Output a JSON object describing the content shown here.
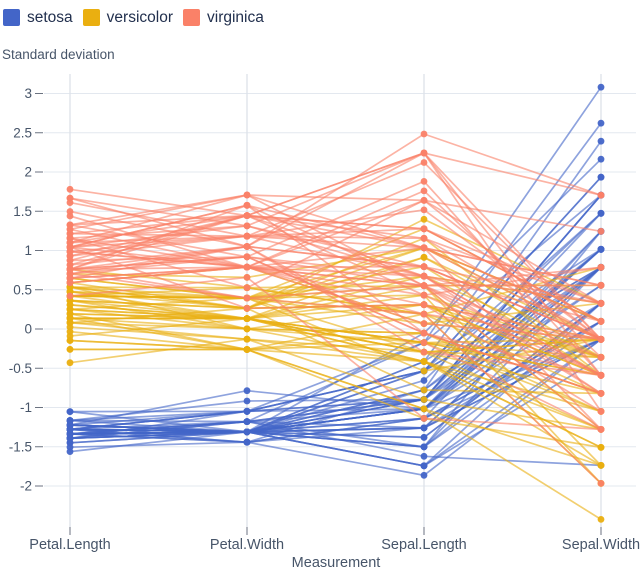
{
  "legend": {
    "items": [
      {
        "label": "setosa",
        "color": "#4365c8"
      },
      {
        "label": "versicolor",
        "color": "#eaaf10"
      },
      {
        "label": "virginica",
        "color": "#fa8168"
      }
    ]
  },
  "chart_data": {
    "type": "line",
    "subtype": "parallel-coordinates",
    "title": "",
    "xlabel": "Measurement",
    "ylabel": "Standard deviation",
    "legend_position": "top-left",
    "grid": true,
    "axes": [
      "Petal.Length",
      "Petal.Width",
      "Sepal.Length",
      "Sepal.Width"
    ],
    "columns": [
      "Sepal.Length",
      "Sepal.Width",
      "Petal.Length",
      "Petal.Width"
    ],
    "transform": "z-score per measurement over all observations",
    "y_ticks": [
      3,
      2.5,
      2,
      1.5,
      1,
      0.5,
      0,
      -0.5,
      -1,
      -1.5,
      -2
    ],
    "y_tick_labels": [
      "3",
      "2.5",
      "2",
      "1.5",
      "1",
      "0.5",
      "0",
      "-0.5",
      "-1",
      "-1.5",
      "-2"
    ],
    "ylim": [
      -2.55,
      3.28
    ],
    "style": {
      "grid_color": "#e3e8ef",
      "axis_line_color": "#dde2e9",
      "tick_color": "#6b7280",
      "tick_label_color": "#475569",
      "axis_label_color": "#475569",
      "line_width": 1.7,
      "line_opacity": 0.6,
      "point_radius": 3.4
    },
    "series": [
      {
        "name": "setosa",
        "color": "#4365c8",
        "rows": [
          [
            5.1,
            3.5,
            1.4,
            0.2
          ],
          [
            4.9,
            3.0,
            1.4,
            0.2
          ],
          [
            4.7,
            3.2,
            1.3,
            0.2
          ],
          [
            4.6,
            3.1,
            1.5,
            0.2
          ],
          [
            5.0,
            3.6,
            1.4,
            0.2
          ],
          [
            5.4,
            3.9,
            1.7,
            0.4
          ],
          [
            4.6,
            3.4,
            1.4,
            0.3
          ],
          [
            5.0,
            3.4,
            1.5,
            0.2
          ],
          [
            4.4,
            2.9,
            1.4,
            0.2
          ],
          [
            4.9,
            3.1,
            1.5,
            0.1
          ],
          [
            5.4,
            3.7,
            1.5,
            0.2
          ],
          [
            4.8,
            3.4,
            1.6,
            0.2
          ],
          [
            4.8,
            3.0,
            1.4,
            0.1
          ],
          [
            4.3,
            3.0,
            1.1,
            0.1
          ],
          [
            5.8,
            4.0,
            1.2,
            0.2
          ],
          [
            5.7,
            4.4,
            1.5,
            0.4
          ],
          [
            5.4,
            3.9,
            1.3,
            0.4
          ],
          [
            5.1,
            3.5,
            1.4,
            0.3
          ],
          [
            5.7,
            3.8,
            1.7,
            0.3
          ],
          [
            5.1,
            3.8,
            1.5,
            0.3
          ],
          [
            5.4,
            3.4,
            1.7,
            0.2
          ],
          [
            5.1,
            3.7,
            1.5,
            0.4
          ],
          [
            4.6,
            3.6,
            1.0,
            0.2
          ],
          [
            5.1,
            3.3,
            1.7,
            0.5
          ],
          [
            4.8,
            3.4,
            1.9,
            0.2
          ],
          [
            5.0,
            3.0,
            1.6,
            0.2
          ],
          [
            5.0,
            3.4,
            1.6,
            0.4
          ],
          [
            5.2,
            3.5,
            1.5,
            0.2
          ],
          [
            5.2,
            3.4,
            1.4,
            0.2
          ],
          [
            4.7,
            3.2,
            1.6,
            0.2
          ],
          [
            4.8,
            3.1,
            1.6,
            0.2
          ],
          [
            5.4,
            3.4,
            1.5,
            0.4
          ],
          [
            5.2,
            4.1,
            1.5,
            0.1
          ],
          [
            5.5,
            4.2,
            1.4,
            0.2
          ],
          [
            4.9,
            3.1,
            1.5,
            0.2
          ],
          [
            5.0,
            3.2,
            1.2,
            0.2
          ],
          [
            5.5,
            3.5,
            1.3,
            0.2
          ],
          [
            4.9,
            3.6,
            1.4,
            0.1
          ],
          [
            4.4,
            3.0,
            1.3,
            0.2
          ],
          [
            5.1,
            3.4,
            1.5,
            0.2
          ],
          [
            5.0,
            3.5,
            1.3,
            0.3
          ],
          [
            4.5,
            2.3,
            1.3,
            0.3
          ],
          [
            4.4,
            3.2,
            1.3,
            0.2
          ],
          [
            5.0,
            3.5,
            1.6,
            0.6
          ],
          [
            5.1,
            3.8,
            1.9,
            0.4
          ],
          [
            4.8,
            3.0,
            1.4,
            0.3
          ],
          [
            5.1,
            3.8,
            1.6,
            0.2
          ],
          [
            4.6,
            3.2,
            1.4,
            0.2
          ],
          [
            5.3,
            3.7,
            1.5,
            0.2
          ],
          [
            5.0,
            3.3,
            1.4,
            0.2
          ]
        ]
      },
      {
        "name": "versicolor",
        "color": "#eaaf10",
        "rows": [
          [
            7.0,
            3.2,
            4.7,
            1.4
          ],
          [
            6.4,
            3.2,
            4.5,
            1.5
          ],
          [
            6.9,
            3.1,
            4.9,
            1.5
          ],
          [
            5.5,
            2.3,
            4.0,
            1.3
          ],
          [
            6.5,
            2.8,
            4.6,
            1.5
          ],
          [
            5.7,
            2.8,
            4.5,
            1.3
          ],
          [
            6.3,
            3.3,
            4.7,
            1.6
          ],
          [
            4.9,
            2.4,
            3.3,
            1.0
          ],
          [
            6.6,
            2.9,
            4.6,
            1.3
          ],
          [
            5.2,
            2.7,
            3.9,
            1.4
          ],
          [
            5.0,
            2.0,
            3.5,
            1.0
          ],
          [
            5.9,
            3.0,
            4.2,
            1.5
          ],
          [
            6.0,
            2.2,
            4.0,
            1.0
          ],
          [
            6.1,
            2.9,
            4.7,
            1.4
          ],
          [
            5.6,
            2.9,
            3.6,
            1.3
          ],
          [
            6.7,
            3.1,
            4.4,
            1.4
          ],
          [
            5.6,
            3.0,
            4.5,
            1.5
          ],
          [
            5.8,
            2.7,
            4.1,
            1.0
          ],
          [
            6.2,
            2.2,
            4.5,
            1.5
          ],
          [
            5.6,
            2.5,
            3.9,
            1.1
          ],
          [
            5.9,
            3.2,
            4.8,
            1.8
          ],
          [
            6.1,
            2.8,
            4.0,
            1.3
          ],
          [
            6.3,
            2.5,
            4.9,
            1.5
          ],
          [
            6.1,
            2.8,
            4.7,
            1.2
          ],
          [
            6.4,
            2.9,
            4.3,
            1.3
          ],
          [
            6.6,
            3.0,
            4.4,
            1.4
          ],
          [
            6.8,
            2.8,
            4.8,
            1.4
          ],
          [
            6.7,
            3.0,
            5.0,
            1.7
          ],
          [
            6.0,
            2.9,
            4.5,
            1.5
          ],
          [
            5.7,
            2.6,
            3.5,
            1.0
          ],
          [
            5.5,
            2.4,
            3.8,
            1.1
          ],
          [
            5.5,
            2.4,
            3.7,
            1.0
          ],
          [
            5.8,
            2.7,
            3.9,
            1.2
          ],
          [
            6.0,
            2.7,
            5.1,
            1.6
          ],
          [
            5.4,
            3.0,
            4.5,
            1.5
          ],
          [
            6.0,
            3.4,
            4.5,
            1.6
          ],
          [
            6.7,
            3.1,
            4.7,
            1.5
          ],
          [
            6.3,
            2.3,
            4.4,
            1.3
          ],
          [
            5.6,
            3.0,
            4.1,
            1.3
          ],
          [
            5.5,
            2.5,
            4.0,
            1.3
          ],
          [
            5.5,
            2.6,
            4.4,
            1.2
          ],
          [
            6.1,
            3.0,
            4.6,
            1.4
          ],
          [
            5.8,
            2.6,
            4.0,
            1.2
          ],
          [
            5.0,
            2.3,
            3.3,
            1.0
          ],
          [
            5.6,
            2.7,
            4.2,
            1.3
          ],
          [
            5.7,
            3.0,
            4.2,
            1.2
          ],
          [
            5.7,
            2.9,
            4.2,
            1.3
          ],
          [
            6.2,
            2.9,
            4.3,
            1.3
          ],
          [
            5.1,
            2.5,
            3.0,
            1.1
          ],
          [
            5.7,
            2.8,
            4.1,
            1.3
          ]
        ]
      },
      {
        "name": "virginica",
        "color": "#fa8168",
        "rows": [
          [
            6.3,
            3.3,
            6.0,
            2.5
          ],
          [
            5.8,
            2.7,
            5.1,
            1.9
          ],
          [
            7.1,
            3.0,
            5.9,
            2.1
          ],
          [
            6.3,
            2.9,
            5.6,
            1.8
          ],
          [
            6.5,
            3.0,
            5.8,
            2.2
          ],
          [
            7.6,
            3.0,
            6.6,
            2.1
          ],
          [
            4.9,
            2.5,
            4.5,
            1.7
          ],
          [
            7.3,
            2.9,
            6.3,
            1.8
          ],
          [
            6.7,
            2.5,
            5.8,
            1.8
          ],
          [
            7.2,
            3.6,
            6.1,
            2.5
          ],
          [
            6.5,
            3.2,
            5.1,
            2.0
          ],
          [
            6.4,
            2.7,
            5.3,
            1.9
          ],
          [
            6.8,
            3.0,
            5.5,
            2.1
          ],
          [
            5.7,
            2.5,
            5.0,
            2.0
          ],
          [
            5.8,
            2.8,
            5.1,
            2.4
          ],
          [
            6.4,
            3.2,
            5.3,
            2.3
          ],
          [
            6.5,
            3.0,
            5.5,
            1.8
          ],
          [
            7.7,
            3.8,
            6.7,
            2.2
          ],
          [
            7.7,
            2.6,
            6.9,
            2.3
          ],
          [
            6.0,
            2.2,
            5.0,
            1.5
          ],
          [
            6.9,
            3.2,
            5.7,
            2.3
          ],
          [
            5.6,
            2.8,
            4.9,
            2.0
          ],
          [
            7.7,
            2.8,
            6.7,
            2.0
          ],
          [
            6.3,
            2.7,
            4.9,
            1.8
          ],
          [
            6.7,
            3.3,
            5.7,
            2.1
          ],
          [
            7.2,
            3.2,
            6.0,
            1.8
          ],
          [
            6.2,
            2.8,
            4.8,
            1.8
          ],
          [
            6.1,
            3.0,
            4.9,
            1.8
          ],
          [
            6.4,
            2.8,
            5.6,
            2.1
          ],
          [
            7.2,
            3.0,
            5.8,
            1.6
          ],
          [
            7.4,
            2.8,
            6.1,
            1.9
          ],
          [
            7.9,
            3.8,
            6.4,
            2.0
          ],
          [
            6.4,
            2.8,
            5.6,
            2.2
          ],
          [
            6.3,
            2.8,
            5.1,
            1.5
          ],
          [
            6.1,
            2.6,
            5.6,
            1.4
          ],
          [
            7.7,
            3.0,
            6.1,
            2.3
          ],
          [
            6.3,
            3.4,
            5.6,
            2.4
          ],
          [
            6.4,
            3.1,
            5.5,
            1.8
          ],
          [
            6.0,
            3.0,
            4.8,
            1.8
          ],
          [
            6.9,
            3.1,
            5.4,
            2.1
          ],
          [
            6.7,
            3.1,
            5.6,
            2.4
          ],
          [
            6.9,
            3.1,
            5.1,
            2.3
          ],
          [
            5.8,
            2.7,
            5.1,
            1.9
          ],
          [
            6.8,
            3.2,
            5.9,
            2.3
          ],
          [
            6.7,
            3.3,
            5.7,
            2.5
          ],
          [
            6.7,
            3.0,
            5.2,
            2.3
          ],
          [
            6.3,
            2.5,
            5.0,
            1.9
          ],
          [
            6.5,
            3.0,
            5.2,
            2.0
          ],
          [
            6.2,
            3.4,
            5.4,
            2.3
          ],
          [
            5.9,
            3.0,
            5.1,
            1.8
          ]
        ]
      }
    ]
  }
}
